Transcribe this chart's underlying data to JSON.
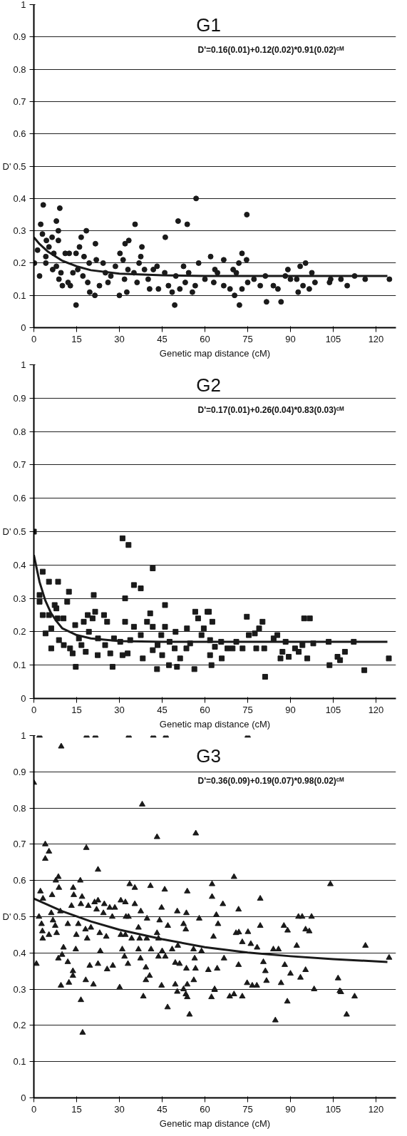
{
  "chart_data": [
    {
      "type": "scatter",
      "title": "G1",
      "annotations": [
        "D'=0.16(0.01)+0.12(0.02)*0.91(0.02)ᶜᴹ"
      ],
      "xlabel": "Genetic map distance (cM)",
      "ylabel": "D'",
      "xlim": [
        0,
        127
      ],
      "ylim": [
        0,
        1
      ],
      "xticks": [
        0,
        15,
        30,
        45,
        60,
        75,
        90,
        105,
        120
      ],
      "yticks": [
        0,
        0.1,
        0.2,
        0.3,
        0.4,
        0.5,
        0.6,
        0.7,
        0.8,
        0.9,
        1
      ],
      "grid": "y",
      "series": [
        {
          "type": "scatter",
          "marker": "circle",
          "color": "#1a1a1a",
          "x": [
            0.2,
            2,
            3.3,
            2.4,
            1.3,
            3,
            4.4,
            4.2,
            4.2,
            6.4,
            5.3,
            7,
            9.1,
            7.9,
            8.6,
            8.6,
            6.6,
            7.9,
            8.8,
            10,
            9.5,
            11,
            12,
            12.8,
            12.4,
            14.8,
            14.8,
            13.7,
            15.4,
            16.6,
            16,
            18.4,
            17.6,
            17.2,
            18.9,
            19.6,
            19.4,
            21.6,
            21.9,
            21.4,
            23,
            24.3,
            25.1,
            26,
            27,
            28.6,
            30,
            30.2,
            31.3,
            31.8,
            32,
            33.3,
            32.6,
            33,
            35.5,
            35.1,
            36.2,
            37.9,
            37.5,
            36.9,
            38.8,
            40.1,
            40.6,
            41.9,
            43.2,
            43.7,
            46.1,
            45.9,
            47.2,
            48.5,
            49.4,
            50.6,
            49.8,
            51.2,
            52.5,
            53.1,
            53.8,
            54.3,
            55.6,
            56.6,
            56.9,
            57.8,
            60,
            62,
            63.5,
            63.1,
            64.4,
            66.6,
            66.6,
            68.8,
            69.9,
            70.4,
            71,
            72.1,
            71.9,
            73,
            74.7,
            74.6,
            73,
            75,
            77.2,
            79.4,
            81.2,
            81.6,
            84,
            85.6,
            86.7,
            88.2,
            89.1,
            90,
            92.7,
            92.2,
            93.4,
            94.4,
            95.3,
            96.6,
            97.5,
            98.6,
            103.7,
            104.1,
            107.7,
            109.9,
            112.5,
            116.2,
            124.7
          ],
          "values": [
            0.2,
            0.16,
            0.38,
            0.32,
            0.24,
            0.29,
            0.27,
            0.22,
            0.2,
            0.28,
            0.25,
            0.23,
            0.37,
            0.33,
            0.3,
            0.27,
            0.18,
            0.19,
            0.15,
            0.13,
            0.17,
            0.23,
            0.14,
            0.13,
            0.23,
            0.23,
            0.07,
            0.17,
            0.18,
            0.28,
            0.25,
            0.3,
            0.22,
            0.16,
            0.14,
            0.11,
            0.2,
            0.26,
            0.21,
            0.1,
            0.13,
            0.2,
            0.17,
            0.14,
            0.16,
            0.19,
            0.1,
            0.23,
            0.21,
            0.15,
            0.26,
            0.27,
            0.11,
            0.18,
            0.32,
            0.17,
            0.14,
            0.25,
            0.22,
            0.2,
            0.18,
            0.15,
            0.12,
            0.18,
            0.19,
            0.12,
            0.28,
            0.17,
            0.13,
            0.11,
            0.07,
            0.33,
            0.16,
            0.12,
            0.19,
            0.14,
            0.32,
            0.17,
            0.11,
            0.13,
            0.4,
            0.2,
            0.15,
            0.22,
            0.18,
            0.14,
            0.17,
            0.21,
            0.13,
            0.12,
            0.18,
            0.1,
            0.17,
            0.07,
            0.2,
            0.23,
            0.35,
            0.21,
            0.12,
            0.14,
            0.15,
            0.13,
            0.16,
            0.08,
            0.13,
            0.12,
            0.08,
            0.16,
            0.18,
            0.15,
            0.11,
            0.15,
            0.19,
            0.13,
            0.2,
            0.12,
            0.17,
            0.14,
            0.14,
            0.15,
            0.15,
            0.13,
            0.16,
            0.15,
            0.15
          ]
        },
        {
          "type": "line",
          "marker": "none",
          "color": "#1a1a1a",
          "x": [
            0,
            2,
            5,
            10,
            15,
            20,
            30,
            45,
            60,
            90,
            124
          ],
          "values": [
            0.28,
            0.259,
            0.235,
            0.207,
            0.19,
            0.178,
            0.167,
            0.162,
            0.16,
            0.16,
            0.16
          ]
        }
      ]
    },
    {
      "type": "scatter",
      "title": "G2",
      "annotations": [
        "D'=0.17(0.01)+0.26(0.04)*0.83(0.03)ᶜᴹ"
      ],
      "xlabel": "Genetic map distance (cM)",
      "ylabel": "D'",
      "xlim": [
        0,
        127
      ],
      "ylim": [
        0,
        1
      ],
      "xticks": [
        0,
        15,
        30,
        45,
        60,
        75,
        90,
        105,
        120
      ],
      "yticks": [
        0,
        0.1,
        0.2,
        0.3,
        0.4,
        0.5,
        0.6,
        0.7,
        0.8,
        0.9,
        1
      ],
      "grid": "y",
      "series": [
        {
          "type": "scatter",
          "marker": "square",
          "color": "#1a1a1a",
          "x": [
            0,
            3.1,
            2,
            2,
            3.1,
            5.3,
            4.1,
            5.3,
            6.1,
            6.1,
            7.3,
            7.9,
            8.5,
            8.3,
            8.8,
            10.4,
            10.5,
            11.7,
            12.3,
            12.7,
            13.6,
            14.5,
            14.7,
            15.8,
            16.7,
            17.5,
            18.2,
            19.3,
            18.9,
            20.6,
            21,
            21.5,
            22.4,
            22.5,
            24.6,
            25,
            25.7,
            26.8,
            27.6,
            28.1,
            30.3,
            31.1,
            33.2,
            32,
            32,
            31.1,
            32.9,
            33.8,
            35.1,
            35.1,
            37.5,
            37.5,
            38.2,
            39.7,
            40.8,
            41.7,
            41.7,
            41.7,
            43.2,
            43.4,
            44.7,
            45,
            46,
            46,
            47.4,
            47.6,
            49.4,
            50.2,
            49.7,
            51.3,
            53.7,
            53.5,
            54.8,
            56.3,
            56.6,
            57.6,
            58.8,
            59.6,
            61.4,
            61.8,
            62.3,
            60.9,
            62.6,
            61.8,
            63.5,
            65.9,
            65.7,
            67.9,
            69.7,
            71,
            73.2,
            74.7,
            75.4,
            77.5,
            78,
            79,
            80.2,
            80.8,
            81.1,
            84.1,
            85.4,
            86.5,
            87.2,
            88.3,
            89.4,
            91.6,
            92.9,
            94.2,
            94.8,
            96.8,
            95.9,
            98,
            103.4,
            103.7,
            106.5,
            107.4,
            109.1,
            112.2,
            115.9,
            124.5
          ],
          "values": [
            0.5,
            0.38,
            0.31,
            0.29,
            0.25,
            0.35,
            0.195,
            0.25,
            0.21,
            0.15,
            0.28,
            0.27,
            0.35,
            0.24,
            0.175,
            0.24,
            0.16,
            0.29,
            0.32,
            0.15,
            0.135,
            0.22,
            0.095,
            0.18,
            0.16,
            0.23,
            0.14,
            0.2,
            0.25,
            0.24,
            0.31,
            0.26,
            0.13,
            0.18,
            0.25,
            0.16,
            0.23,
            0.135,
            0.095,
            0.18,
            0.17,
            0.48,
            0.46,
            0.3,
            0.23,
            0.13,
            0.135,
            0.175,
            0.215,
            0.34,
            0.33,
            0.19,
            0.12,
            0.23,
            0.255,
            0.39,
            0.215,
            0.145,
            0.088,
            0.16,
            0.19,
            0.13,
            0.28,
            0.215,
            0.1,
            0.17,
            0.15,
            0.095,
            0.2,
            0.12,
            0.21,
            0.15,
            0.165,
            0.088,
            0.26,
            0.24,
            0.19,
            0.21,
            0.26,
            0.13,
            0.1,
            0.26,
            0.23,
            0.175,
            0.155,
            0.12,
            0.17,
            0.15,
            0.15,
            0.17,
            0.15,
            0.245,
            0.19,
            0.195,
            0.15,
            0.21,
            0.23,
            0.15,
            0.065,
            0.18,
            0.19,
            0.12,
            0.14,
            0.17,
            0.125,
            0.15,
            0.14,
            0.16,
            0.24,
            0.24,
            0.12,
            0.165,
            0.17,
            0.1,
            0.125,
            0.115,
            0.14,
            0.17,
            0.085,
            0.12
          ]
        },
        {
          "type": "line",
          "marker": "none",
          "color": "#1a1a1a",
          "x": [
            0,
            2,
            4,
            6,
            8,
            10,
            15,
            20,
            30,
            45,
            124
          ],
          "values": [
            0.43,
            0.349,
            0.294,
            0.256,
            0.231,
            0.21,
            0.19,
            0.18,
            0.172,
            0.17,
            0.17
          ]
        }
      ]
    },
    {
      "type": "scatter",
      "title": "G3",
      "annotations": [
        "D'=0.36(0.09)+0.19(0.07)*0.98(0.02)ᶜᴹ"
      ],
      "xlabel": "Genetic map distance (cM)",
      "ylabel": "D'",
      "xlim": [
        0,
        127
      ],
      "ylim": [
        0,
        1
      ],
      "xticks": [
        0,
        15,
        30,
        45,
        60,
        75,
        90,
        105,
        120
      ],
      "yticks": [
        0,
        0.1,
        0.2,
        0.3,
        0.4,
        0.5,
        0.6,
        0.7,
        0.8,
        0.9,
        1
      ],
      "grid": "y",
      "series": [
        {
          "type": "scatter",
          "marker": "triangle",
          "color": "#1a1a1a",
          "x": [
            2,
            18.5,
            21.6,
            33.3,
            41.9,
            46.3,
            75,
            9.6,
            0,
            38,
            43.2,
            56.8,
            4,
            5.3,
            4,
            18.4,
            22.5,
            7.7,
            8.6,
            16.3,
            8.8,
            33.6,
            35.4,
            40.9,
            45.9,
            53.8,
            2.3,
            3.2,
            6.4,
            13.8,
            14,
            16.9,
            13.2,
            16.5,
            19.1,
            21.3,
            22.5,
            22,
            24.7,
            24.4,
            26.6,
            27.5,
            28.4,
            30.5,
            32.1,
            32.3,
            33.2,
            35.4,
            37.5,
            39.7,
            44.8,
            44.1,
            50.3,
            53.5,
            58,
            52.5,
            53.3,
            47,
            1.8,
            2.7,
            6.1,
            6.7,
            7.5,
            9.3,
            11.9,
            3,
            5.3,
            3.1,
            8,
            14.9,
            15.6,
            18.1,
            18.7,
            20,
            23.1,
            25.4,
            30.5,
            32.1,
            34.3,
            36.7,
            37.1,
            39.6,
            41.1,
            43.2,
            43.7,
            10.4,
            8.6,
            9.9,
            11.9,
            14.7,
            23.3,
            31,
            31.8,
            36.7,
            45,
            48.5,
            50.5,
            43.7,
            46.1,
            56,
            58.8,
            56.4,
            0.9,
            19.6,
            22.5,
            25.7,
            27.7,
            33,
            37.4,
            39.3,
            49.6,
            51.1,
            53.5,
            56.7,
            61.2,
            13.7,
            13.7,
            12.3,
            9.5,
            18.2,
            20.9,
            30.1,
            39.3,
            40.6,
            44.8,
            49.6,
            50.3,
            52.5,
            53.8,
            56.1,
            53.3,
            53.8,
            62.3,
            63.4,
            16.5,
            38.4,
            46.9,
            54.6,
            17.1,
            62.5,
            70.2,
            104,
            62.5,
            66.3,
            79.4,
            71.8,
            64,
            64.6,
            92.8,
            94.1,
            97.4,
            70.9,
            71.9,
            75.1,
            79.4,
            87.7,
            89,
            95.3,
            96.6,
            63,
            73.1,
            76.1,
            78.3,
            84,
            85.8,
            92.2,
            116.3,
            124.6,
            66.7,
            64.3,
            71.8,
            80.5,
            81.2,
            88,
            95.3,
            90,
            93.5,
            81.6,
            86.7,
            74.8,
            76.6,
            78.2,
            106.7,
            63.4,
            98.3,
            107.3,
            107.7,
            68.7,
            70.2,
            73.1,
            112.5,
            88.9,
            109.7,
            84.7
          ],
          "values": [
            1,
            1,
            1,
            1,
            1,
            1,
            1,
            0.97,
            0.87,
            0.81,
            0.72,
            0.73,
            0.7,
            0.68,
            0.66,
            0.69,
            0.63,
            0.6,
            0.61,
            0.6,
            0.58,
            0.59,
            0.58,
            0.585,
            0.575,
            0.57,
            0.57,
            0.55,
            0.56,
            0.58,
            0.56,
            0.555,
            0.53,
            0.535,
            0.53,
            0.54,
            0.545,
            0.52,
            0.535,
            0.51,
            0.525,
            0.5,
            0.525,
            0.545,
            0.54,
            0.5,
            0.5,
            0.535,
            0.515,
            0.495,
            0.525,
            0.49,
            0.515,
            0.51,
            0.495,
            0.48,
            0.465,
            0.475,
            0.5,
            0.48,
            0.51,
            0.49,
            0.475,
            0.515,
            0.48,
            0.46,
            0.45,
            0.44,
            0.455,
            0.45,
            0.48,
            0.465,
            0.44,
            0.47,
            0.455,
            0.445,
            0.45,
            0.45,
            0.44,
            0.47,
            0.44,
            0.44,
            0.41,
            0.455,
            0.44,
            0.415,
            0.385,
            0.395,
            0.375,
            0.41,
            0.405,
            0.41,
            0.39,
            0.41,
            0.405,
            0.41,
            0.42,
            0.39,
            0.39,
            0.41,
            0.405,
            0.385,
            0.37,
            0.365,
            0.37,
            0.355,
            0.365,
            0.37,
            0.385,
            0.36,
            0.373,
            0.37,
            0.357,
            0.357,
            0.353,
            0.35,
            0.337,
            0.318,
            0.31,
            0.325,
            0.313,
            0.305,
            0.325,
            0.337,
            0.31,
            0.313,
            0.293,
            0.3,
            0.313,
            0.325,
            0.286,
            0.278,
            0.278,
            0.298,
            0.27,
            0.28,
            0.25,
            0.23,
            0.18,
            0.59,
            0.61,
            0.59,
            0.555,
            0.535,
            0.55,
            0.52,
            0.505,
            0.48,
            0.5,
            0.5,
            0.5,
            0.455,
            0.457,
            0.458,
            0.475,
            0.475,
            0.462,
            0.465,
            0.46,
            0.445,
            0.43,
            0.425,
            0.415,
            0.41,
            0.41,
            0.42,
            0.42,
            0.387,
            0.385,
            0.357,
            0.367,
            0.375,
            0.35,
            0.367,
            0.353,
            0.343,
            0.332,
            0.323,
            0.317,
            0.317,
            0.31,
            0.31,
            0.33,
            0.3,
            0.3,
            0.295,
            0.292,
            0.28,
            0.286,
            0.28,
            0.28,
            0.266,
            0.23,
            0.214
          ]
        },
        {
          "type": "line",
          "marker": "none",
          "color": "#1a1a1a",
          "x": [
            0,
            10,
            20,
            30,
            45,
            60,
            75,
            90,
            105,
            124
          ],
          "values": [
            0.55,
            0.515,
            0.487,
            0.464,
            0.438,
            0.416,
            0.401,
            0.391,
            0.383,
            0.375
          ]
        }
      ]
    }
  ]
}
